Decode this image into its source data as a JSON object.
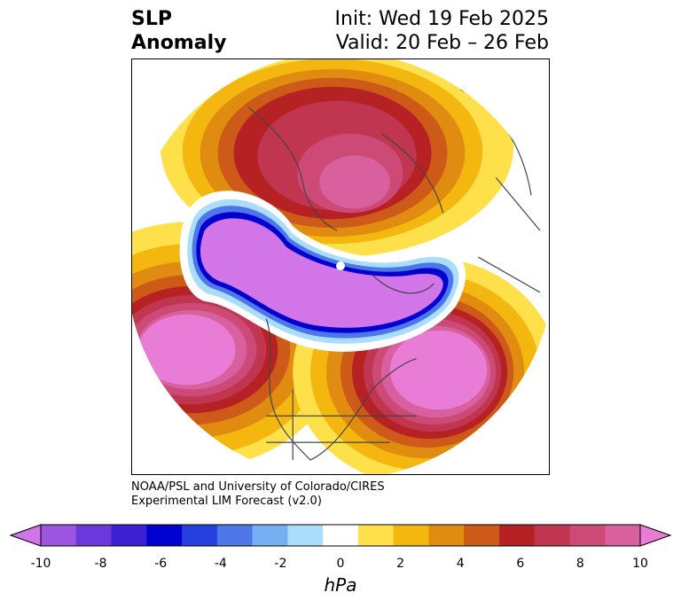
{
  "title": {
    "line1": "SLP",
    "line2": "Anomaly"
  },
  "init": "Init: Wed 19 Feb 2025",
  "valid": "Valid: 20 Feb – 26 Feb",
  "credit": {
    "line1": "NOAA/PSL and University of Colorado/CIRES",
    "line2": "Experimental LIM Forecast (v2.0)"
  },
  "colorbar": {
    "colors": [
      "#d175e8",
      "#9b55e0",
      "#6b38dc",
      "#3a1fd3",
      "#0000cf",
      "#2340dc",
      "#4d76e8",
      "#77b0f2",
      "#aadcfc",
      "#ffffff",
      "#fde04a",
      "#f3b70f",
      "#e08c10",
      "#cd5a18",
      "#b62223",
      "#c03550",
      "#cd4a77",
      "#d8609f",
      "#e97cd6"
    ],
    "ticks": [
      "-10",
      "-8",
      "-6",
      "-4",
      "-2",
      "0",
      "2",
      "4",
      "6",
      "8",
      "10"
    ],
    "unit": "hPa"
  }
}
